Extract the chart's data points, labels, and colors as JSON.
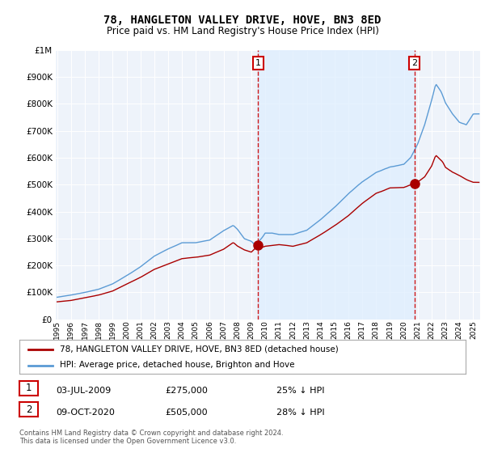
{
  "title": "78, HANGLETON VALLEY DRIVE, HOVE, BN3 8ED",
  "subtitle": "Price paid vs. HM Land Registry's House Price Index (HPI)",
  "footnote": "Contains HM Land Registry data © Crown copyright and database right 2024.\nThis data is licensed under the Open Government Licence v3.0.",
  "legend_line1": "78, HANGLETON VALLEY DRIVE, HOVE, BN3 8ED (detached house)",
  "legend_line2": "HPI: Average price, detached house, Brighton and Hove",
  "purchase1": {
    "label": "1",
    "date": "03-JUL-2009",
    "price": 275000,
    "pct": "25% ↓ HPI",
    "x": 2009.5
  },
  "purchase2": {
    "label": "2",
    "date": "09-OCT-2020",
    "price": 505000,
    "pct": "28% ↓ HPI",
    "x": 2020.75
  },
  "hpi_color": "#5b9bd5",
  "hpi_fill_color": "#ddeeff",
  "price_color": "#aa0000",
  "dashed_color": "#cc0000",
  "background_color": "#eef3fa",
  "ylim": [
    0,
    1000000
  ],
  "yticks": [
    0,
    100000,
    200000,
    300000,
    400000,
    500000,
    600000,
    700000,
    800000,
    900000,
    1000000
  ],
  "xlim": [
    1994.9,
    2025.5
  ],
  "xticks": [
    1995,
    1996,
    1997,
    1998,
    1999,
    2000,
    2001,
    2002,
    2003,
    2004,
    2005,
    2006,
    2007,
    2008,
    2009,
    2010,
    2011,
    2012,
    2013,
    2014,
    2015,
    2016,
    2017,
    2018,
    2019,
    2020,
    2021,
    2022,
    2023,
    2024,
    2025
  ]
}
